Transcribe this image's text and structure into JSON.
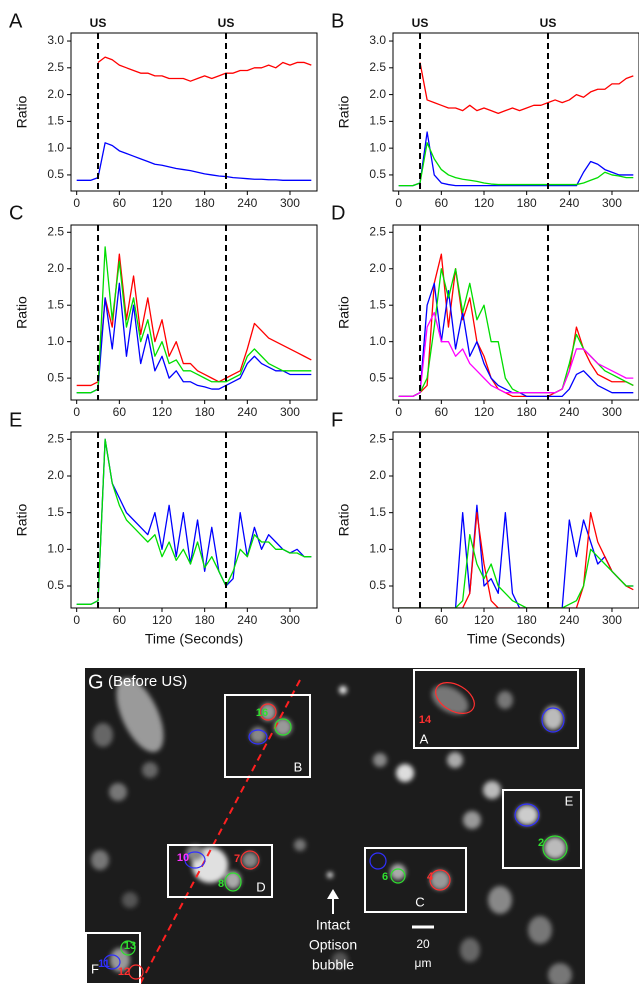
{
  "chart_data": [
    {
      "type": "line",
      "panel_label": "A",
      "ylabel": "Ratio",
      "event_lines": [
        30,
        210
      ],
      "event_labels": [
        "US",
        "US"
      ],
      "x": [
        0,
        10,
        20,
        30,
        40,
        50,
        60,
        70,
        80,
        90,
        100,
        110,
        120,
        130,
        140,
        150,
        160,
        170,
        180,
        190,
        200,
        210,
        220,
        230,
        240,
        250,
        260,
        270,
        280,
        290,
        300,
        310,
        320,
        330
      ],
      "xlim": [
        -8,
        338
      ],
      "xticks": [
        0,
        60,
        120,
        180,
        240,
        300
      ],
      "ylim": [
        0.2,
        3.15
      ],
      "yticks": [
        0.5,
        {
          "value": 1,
          "label": "1.0"
        },
        1.5,
        {
          "value": 2,
          "label": "2.0"
        },
        2.5,
        {
          "value": 3,
          "label": "3.0"
        }
      ],
      "series": [
        {
          "color": "#ff0000",
          "values": [
            null,
            null,
            null,
            2.6,
            2.7,
            2.65,
            2.55,
            2.5,
            2.45,
            2.4,
            2.4,
            2.35,
            2.35,
            2.3,
            2.3,
            2.3,
            2.25,
            2.3,
            2.35,
            2.3,
            2.35,
            2.4,
            2.4,
            2.45,
            2.45,
            2.5,
            2.5,
            2.55,
            2.5,
            2.6,
            2.55,
            2.6,
            2.6,
            2.55
          ]
        },
        {
          "color": "#0000ff",
          "values": [
            0.4,
            0.4,
            0.4,
            0.45,
            1.1,
            1.05,
            0.95,
            0.9,
            0.85,
            0.8,
            0.75,
            0.7,
            0.68,
            0.65,
            0.62,
            0.6,
            0.58,
            0.55,
            0.52,
            0.5,
            0.48,
            0.47,
            0.45,
            0.44,
            0.43,
            0.42,
            0.42,
            0.41,
            0.41,
            0.4,
            0.4,
            0.4,
            0.4,
            0.4
          ]
        }
      ]
    },
    {
      "type": "line",
      "panel_label": "B",
      "ylabel": "Ratio",
      "event_lines": [
        30,
        210
      ],
      "event_labels": [
        "US",
        "US"
      ],
      "x": [
        0,
        10,
        20,
        30,
        40,
        50,
        60,
        70,
        80,
        90,
        100,
        110,
        120,
        130,
        140,
        150,
        160,
        170,
        180,
        190,
        200,
        210,
        220,
        230,
        240,
        250,
        260,
        270,
        280,
        290,
        300,
        310,
        320,
        330
      ],
      "xlim": [
        -8,
        338
      ],
      "xticks": [
        0,
        60,
        120,
        180,
        240,
        300
      ],
      "ylim": [
        0.2,
        3.15
      ],
      "yticks": [
        0.5,
        {
          "value": 1,
          "label": "1.0"
        },
        1.5,
        {
          "value": 2,
          "label": "2.0"
        },
        2.5,
        {
          "value": 3,
          "label": "3.0"
        }
      ],
      "series": [
        {
          "color": "#ff0000",
          "values": [
            null,
            null,
            null,
            2.6,
            1.9,
            1.85,
            1.8,
            1.75,
            1.75,
            1.7,
            1.8,
            1.7,
            1.75,
            1.7,
            1.65,
            1.7,
            1.75,
            1.7,
            1.75,
            1.8,
            1.8,
            1.85,
            1.9,
            1.85,
            1.9,
            2.0,
            1.95,
            2.05,
            2.1,
            2.1,
            2.2,
            2.2,
            2.3,
            2.35
          ]
        },
        {
          "color": "#0000ff",
          "values": [
            0.3,
            0.3,
            0.3,
            0.35,
            1.3,
            0.5,
            0.35,
            0.32,
            0.3,
            0.3,
            0.3,
            0.3,
            0.3,
            0.3,
            0.3,
            0.3,
            0.3,
            0.3,
            0.3,
            0.3,
            0.3,
            0.3,
            0.3,
            0.3,
            0.3,
            0.3,
            0.55,
            0.75,
            0.7,
            0.6,
            0.55,
            0.5,
            0.5,
            0.5
          ]
        },
        {
          "color": "#00dd00",
          "values": [
            0.3,
            0.3,
            0.3,
            0.35,
            1.1,
            0.8,
            0.6,
            0.5,
            0.45,
            0.42,
            0.4,
            0.38,
            0.35,
            0.33,
            0.32,
            0.32,
            0.32,
            0.32,
            0.32,
            0.32,
            0.32,
            0.32,
            0.32,
            0.32,
            0.32,
            0.32,
            0.35,
            0.4,
            0.45,
            0.55,
            0.5,
            0.48,
            0.45,
            0.45
          ]
        }
      ]
    },
    {
      "type": "line",
      "panel_label": "C",
      "ylabel": "Ratio",
      "event_lines": [
        30,
        210
      ],
      "x": [
        0,
        10,
        20,
        30,
        40,
        50,
        60,
        70,
        80,
        90,
        100,
        110,
        120,
        130,
        140,
        150,
        160,
        170,
        180,
        190,
        200,
        210,
        220,
        230,
        240,
        250,
        260,
        270,
        280,
        290,
        300,
        310,
        320,
        330
      ],
      "xlim": [
        -8,
        338
      ],
      "xticks": [
        0,
        60,
        120,
        180,
        240,
        300
      ],
      "ylim": [
        0.2,
        2.6
      ],
      "yticks": [
        0.5,
        {
          "value": 1,
          "label": "1.0"
        },
        1.5,
        {
          "value": 2,
          "label": "2.0"
        },
        2.5
      ],
      "series": [
        {
          "color": "#ff0000",
          "values": [
            0.4,
            0.4,
            0.4,
            0.45,
            1.6,
            1.2,
            2.2,
            1.3,
            1.9,
            1.1,
            1.6,
            1.0,
            1.3,
            0.8,
            1.0,
            0.7,
            0.7,
            0.6,
            0.55,
            0.5,
            0.45,
            0.5,
            0.55,
            0.6,
            0.9,
            1.25,
            1.15,
            1.05,
            1.0,
            0.95,
            0.9,
            0.85,
            0.8,
            0.75
          ]
        },
        {
          "color": "#0000ff",
          "values": [
            0.3,
            0.3,
            0.3,
            0.35,
            1.6,
            0.9,
            1.8,
            0.8,
            1.5,
            0.7,
            1.1,
            0.6,
            0.8,
            0.5,
            0.6,
            0.45,
            0.45,
            0.4,
            0.38,
            0.35,
            0.35,
            0.4,
            0.45,
            0.5,
            0.7,
            0.8,
            0.7,
            0.65,
            0.6,
            0.6,
            0.55,
            0.55,
            0.55,
            0.55
          ]
        },
        {
          "color": "#00dd00",
          "values": [
            0.3,
            0.3,
            0.3,
            0.35,
            2.3,
            1.3,
            2.1,
            1.2,
            1.6,
            1.0,
            1.3,
            0.8,
            1.0,
            0.7,
            0.75,
            0.6,
            0.6,
            0.55,
            0.5,
            0.45,
            0.45,
            0.45,
            0.5,
            0.55,
            0.8,
            0.9,
            0.8,
            0.7,
            0.65,
            0.6,
            0.6,
            0.6,
            0.6,
            0.6
          ]
        }
      ]
    },
    {
      "type": "line",
      "panel_label": "D",
      "ylabel": "Ratio",
      "event_lines": [
        30,
        210
      ],
      "x": [
        0,
        10,
        20,
        30,
        40,
        50,
        60,
        70,
        80,
        90,
        100,
        110,
        120,
        130,
        140,
        150,
        160,
        170,
        180,
        190,
        200,
        210,
        220,
        230,
        240,
        250,
        260,
        270,
        280,
        290,
        300,
        310,
        320,
        330
      ],
      "xlim": [
        -8,
        338
      ],
      "xticks": [
        0,
        60,
        120,
        180,
        240,
        300
      ],
      "ylim": [
        0.2,
        2.6
      ],
      "yticks": [
        0.5,
        {
          "value": 1,
          "label": "1.0"
        },
        1.5,
        {
          "value": 2,
          "label": "2.0"
        },
        2.5
      ],
      "series": [
        {
          "color": "#ff0000",
          "values": [
            0.25,
            0.25,
            0.25,
            0.3,
            0.4,
            1.8,
            2.2,
            1.2,
            2.0,
            1.3,
            1.6,
            1.0,
            0.8,
            0.5,
            0.35,
            0.3,
            0.25,
            0.25,
            0.25,
            0.25,
            0.25,
            0.25,
            0.3,
            0.35,
            0.6,
            1.2,
            0.9,
            0.7,
            0.55,
            0.5,
            0.45,
            0.45,
            0.45,
            0.4
          ]
        },
        {
          "color": "#0000ff",
          "values": [
            0.25,
            0.25,
            0.25,
            0.3,
            1.5,
            1.8,
            1.0,
            1.7,
            0.9,
            1.4,
            0.8,
            1.0,
            0.7,
            0.5,
            0.4,
            0.35,
            0.3,
            0.3,
            0.25,
            0.25,
            0.25,
            0.25,
            0.25,
            0.25,
            0.35,
            0.55,
            0.6,
            0.5,
            0.4,
            0.35,
            0.3,
            0.3,
            0.3,
            0.3
          ]
        },
        {
          "color": "#00dd00",
          "values": [
            0.25,
            0.25,
            0.25,
            0.3,
            0.5,
            1.2,
            2.0,
            1.6,
            2.0,
            1.4,
            1.8,
            1.3,
            1.5,
            1.0,
            1.0,
            0.5,
            0.35,
            0.3,
            0.3,
            0.3,
            0.3,
            0.3,
            0.3,
            0.35,
            0.7,
            1.1,
            0.9,
            0.8,
            0.7,
            0.6,
            0.55,
            0.5,
            0.45,
            0.4
          ]
        },
        {
          "color": "#ff00ff",
          "values": [
            0.25,
            0.25,
            0.25,
            0.3,
            1.2,
            1.4,
            1.0,
            1.0,
            0.8,
            0.9,
            0.7,
            0.6,
            0.5,
            0.4,
            0.35,
            0.3,
            0.3,
            0.3,
            0.3,
            0.3,
            0.3,
            0.3,
            0.3,
            0.35,
            0.6,
            0.9,
            0.9,
            0.8,
            0.7,
            0.65,
            0.6,
            0.55,
            0.5,
            0.5
          ]
        }
      ]
    },
    {
      "type": "line",
      "panel_label": "E",
      "ylabel": "Ratio",
      "xlabel": "Time (Seconds)",
      "event_lines": [
        30,
        210
      ],
      "x": [
        0,
        10,
        20,
        30,
        40,
        50,
        60,
        70,
        80,
        90,
        100,
        110,
        120,
        130,
        140,
        150,
        160,
        170,
        180,
        190,
        200,
        210,
        220,
        230,
        240,
        250,
        260,
        270,
        280,
        290,
        300,
        310,
        320,
        330
      ],
      "xlim": [
        -8,
        338
      ],
      "xticks": [
        0,
        60,
        120,
        180,
        240,
        300
      ],
      "ylim": [
        0.2,
        2.6
      ],
      "yticks": [
        0.5,
        {
          "value": 1,
          "label": "1.0"
        },
        1.5,
        {
          "value": 2,
          "label": "2.0"
        },
        2.5
      ],
      "series": [
        {
          "color": "#0000ff",
          "values": [
            0.25,
            0.25,
            0.25,
            0.3,
            2.5,
            1.9,
            1.7,
            1.5,
            1.4,
            1.3,
            1.2,
            1.5,
            1.0,
            1.6,
            0.9,
            1.5,
            0.8,
            1.4,
            0.7,
            1.3,
            0.7,
            0.5,
            0.6,
            1.5,
            0.9,
            1.3,
            1.0,
            1.2,
            1.1,
            1.0,
            0.95,
            1.0,
            0.9,
            0.9
          ]
        },
        {
          "color": "#00dd00",
          "values": [
            0.25,
            0.25,
            0.25,
            0.3,
            2.5,
            1.9,
            1.6,
            1.4,
            1.3,
            1.2,
            1.1,
            1.2,
            0.9,
            1.1,
            0.85,
            1.0,
            0.8,
            1.1,
            0.75,
            0.9,
            0.7,
            0.5,
            0.7,
            1.0,
            0.9,
            1.2,
            1.1,
            1.1,
            1.0,
            1.0,
            0.95,
            0.95,
            0.9,
            0.9
          ]
        }
      ]
    },
    {
      "type": "line",
      "panel_label": "F",
      "ylabel": "Ratio",
      "xlabel": "Time (Seconds)",
      "event_lines": [
        30,
        210
      ],
      "x": [
        0,
        10,
        20,
        30,
        40,
        50,
        60,
        70,
        80,
        90,
        100,
        110,
        120,
        130,
        140,
        150,
        160,
        170,
        180,
        190,
        200,
        210,
        220,
        230,
        240,
        250,
        260,
        270,
        280,
        290,
        300,
        310,
        320,
        330
      ],
      "xlim": [
        -8,
        338
      ],
      "xticks": [
        0,
        60,
        120,
        180,
        240,
        300
      ],
      "ylim": [
        0.2,
        2.6
      ],
      "yticks": [
        0.5,
        {
          "value": 1,
          "label": "1.0"
        },
        1.5,
        {
          "value": 2,
          "label": "2.0"
        },
        2.5
      ],
      "series": [
        {
          "color": "#0000ff",
          "values": [
            0.2,
            0.2,
            0.2,
            0.2,
            0.2,
            0.2,
            0.2,
            0.2,
            0.2,
            1.5,
            0.4,
            1.6,
            0.5,
            0.6,
            0.4,
            1.5,
            0.4,
            0.2,
            0.2,
            0.2,
            0.2,
            0.2,
            0.2,
            0.2,
            1.4,
            0.9,
            1.4,
            1.1,
            0.8,
            0.9,
            0.7,
            0.6,
            0.5,
            0.5
          ]
        },
        {
          "color": "#ff0000",
          "values": [
            0.2,
            0.2,
            0.2,
            0.2,
            0.2,
            0.2,
            0.2,
            0.2,
            0.2,
            0.2,
            0.4,
            1.5,
            0.8,
            0.3,
            0.2,
            0.2,
            0.2,
            0.2,
            0.2,
            0.2,
            0.2,
            0.2,
            0.2,
            0.2,
            0.2,
            0.2,
            0.5,
            1.5,
            1.1,
            0.9,
            0.7,
            0.6,
            0.5,
            0.45
          ]
        },
        {
          "color": "#00dd00",
          "values": [
            0.2,
            0.2,
            0.2,
            0.2,
            0.2,
            0.2,
            0.2,
            0.2,
            0.2,
            0.3,
            1.2,
            0.8,
            0.6,
            0.8,
            0.5,
            0.4,
            0.3,
            0.25,
            0.2,
            0.2,
            0.2,
            0.2,
            0.2,
            0.2,
            0.25,
            0.3,
            0.5,
            1.0,
            0.9,
            0.8,
            0.7,
            0.6,
            0.5,
            0.5
          ]
        }
      ]
    }
  ],
  "micrograph": {
    "panel_label": "G",
    "caption": "(Before US)",
    "box_labels": [
      "A",
      "B",
      "C",
      "D",
      "E",
      "F"
    ],
    "cell_labels": [
      "14",
      "16",
      "10",
      "7",
      "8",
      "6",
      "4",
      "2",
      "13",
      "11",
      "12"
    ],
    "annotation": [
      "Intact",
      "Optison",
      "bubble"
    ],
    "scale_bar": [
      "20",
      "μm"
    ]
  }
}
